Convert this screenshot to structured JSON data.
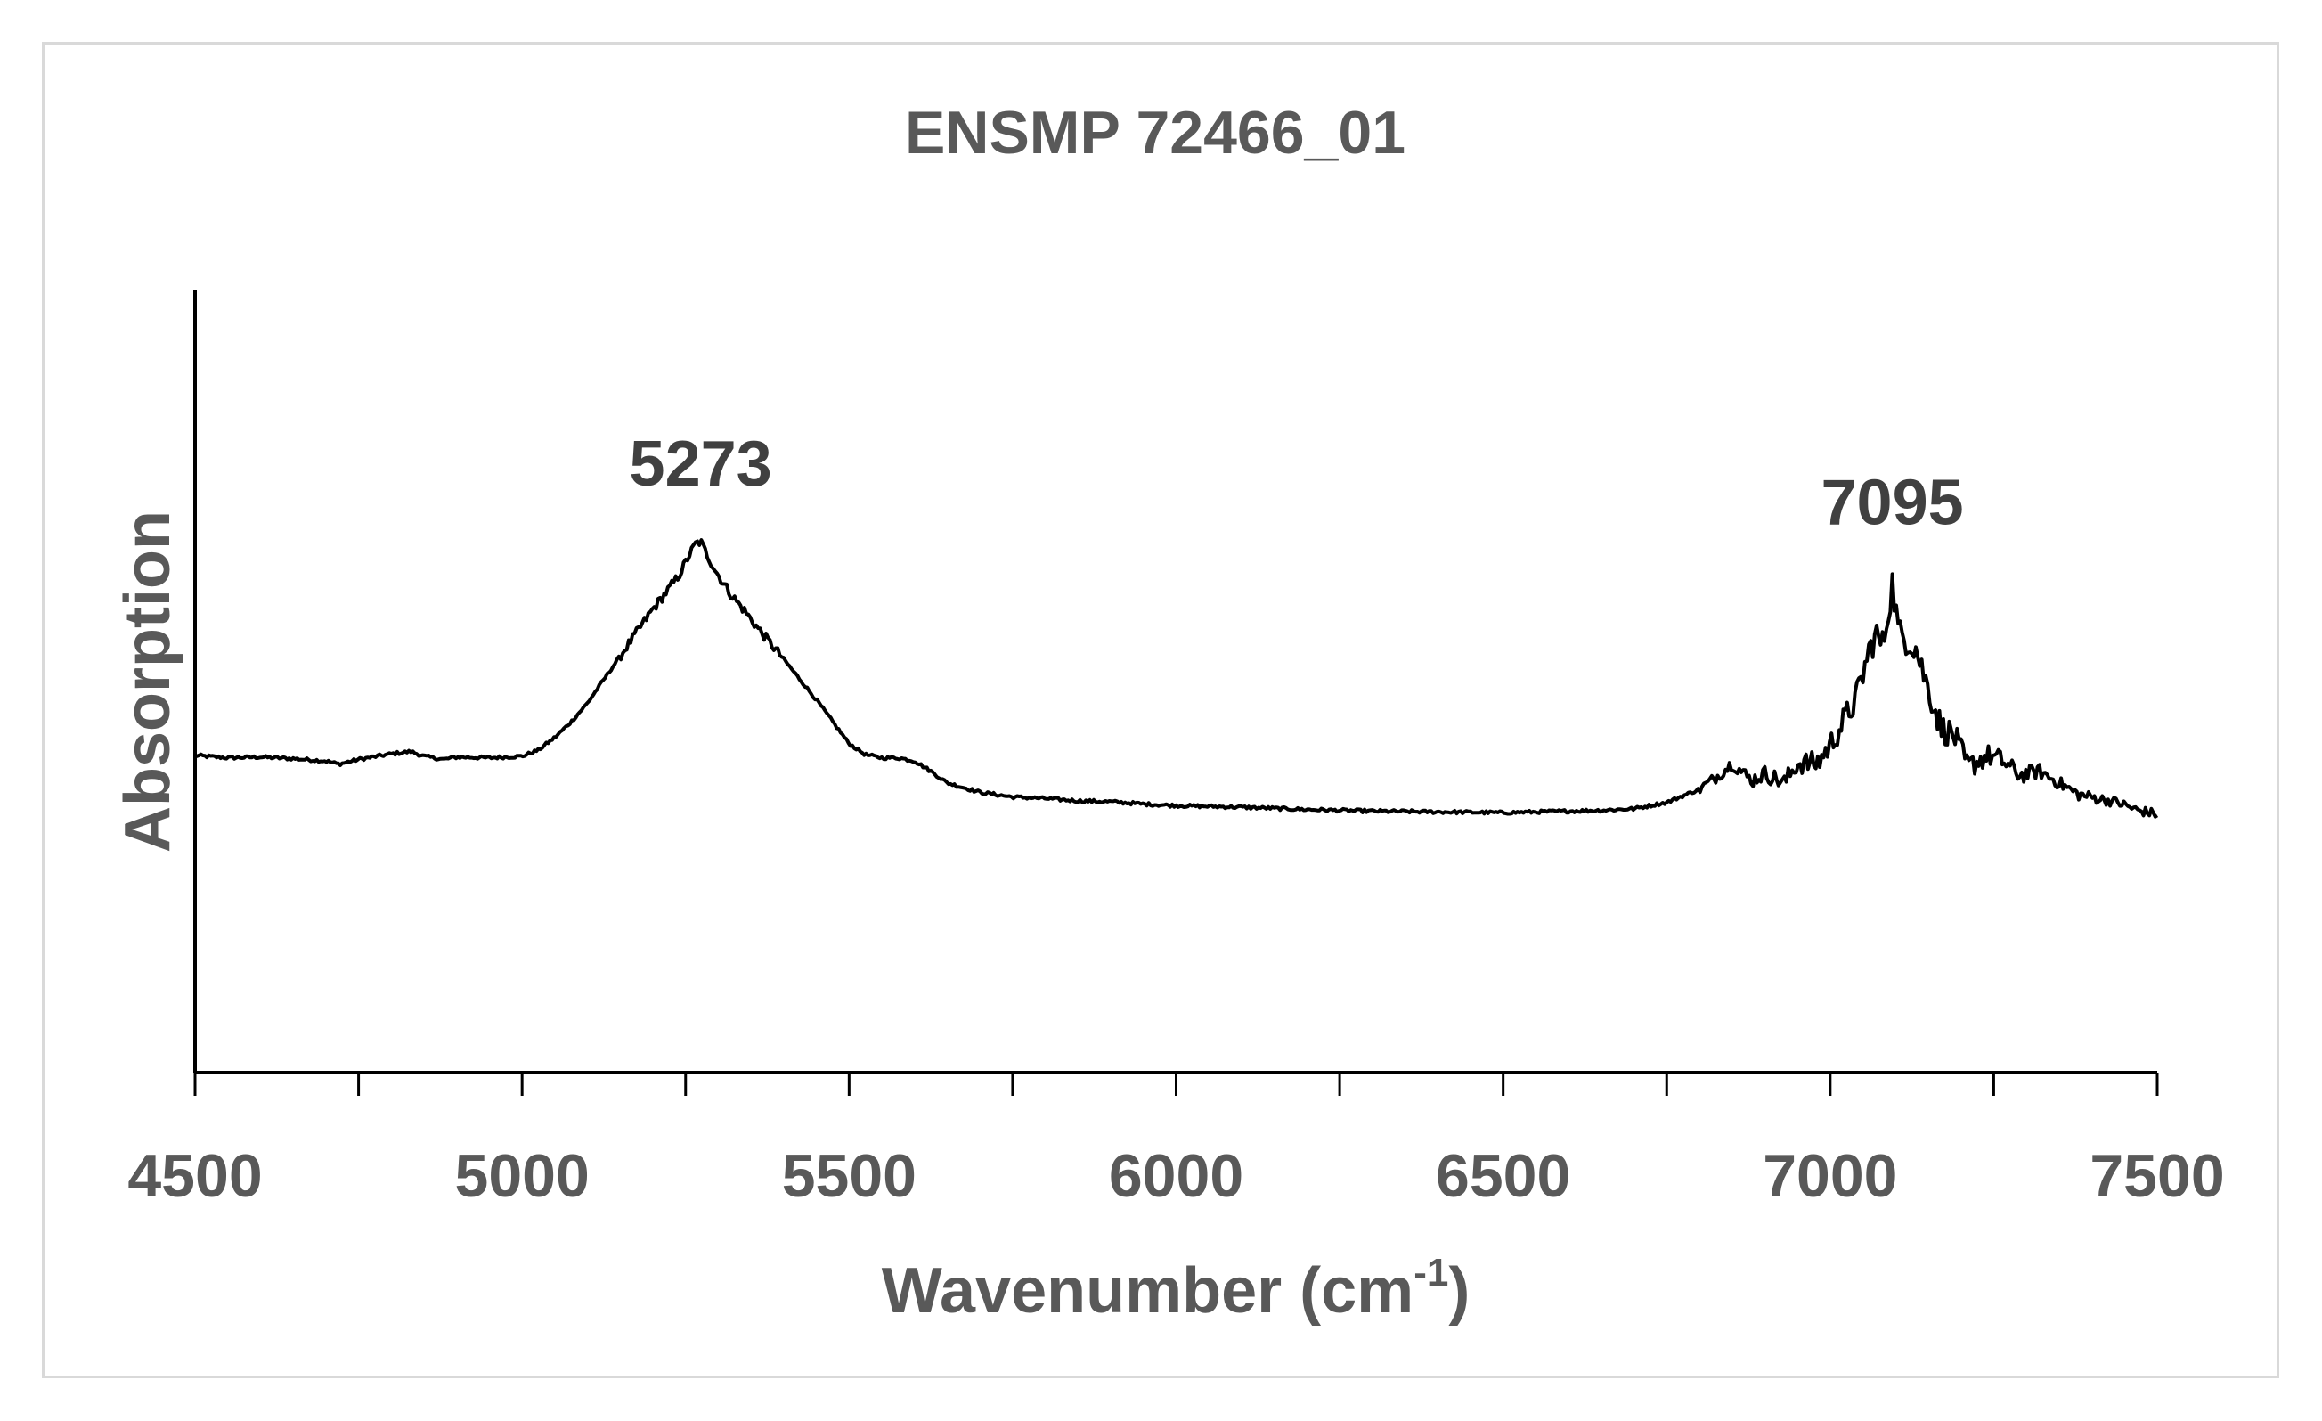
{
  "chart_data": {
    "type": "line",
    "title": "ENSMP 72466_01",
    "xlabel": "Wavenumber (cm",
    "xlabel_sup": "-1",
    "xlabel_close": ")",
    "ylabel": "Absorption",
    "xlim": [
      4500,
      7500
    ],
    "ylim": [
      0,
      1
    ],
    "x_ticks": [
      4500,
      5000,
      5500,
      6000,
      6500,
      7000,
      7500
    ],
    "x_tick_labels": [
      "4500",
      "5000",
      "5500",
      "6000",
      "6500",
      "7000",
      "7500"
    ],
    "x_minor_step": 250,
    "grid": false,
    "legend": "none",
    "line_color": "#000000",
    "annotations": [
      {
        "text": "5273",
        "x": 5273,
        "y": 0.75
      },
      {
        "text": "7095",
        "x": 7095,
        "y": 0.7
      }
    ],
    "series": [
      {
        "name": "ENSMP 72466_01",
        "x": [
          4500,
          4550,
          4600,
          4650,
          4700,
          4720,
          4750,
          4800,
          4830,
          4850,
          4880,
          4900,
          4950,
          5000,
          5025,
          5050,
          5075,
          5100,
          5125,
          5150,
          5175,
          5200,
          5220,
          5240,
          5255,
          5265,
          5273,
          5280,
          5290,
          5300,
          5320,
          5340,
          5360,
          5380,
          5400,
          5425,
          5450,
          5475,
          5500,
          5525,
          5550,
          5575,
          5600,
          5625,
          5650,
          5700,
          5750,
          5800,
          5850,
          5900,
          5950,
          6000,
          6100,
          6200,
          6300,
          6400,
          6500,
          6550,
          6600,
          6650,
          6700,
          6750,
          6800,
          6830,
          6850,
          6880,
          6900,
          6930,
          6950,
          6980,
          7000,
          7020,
          7040,
          7060,
          7070,
          7080,
          7088,
          7095,
          7105,
          7115,
          7130,
          7150,
          7170,
          7190,
          7210,
          7240,
          7260,
          7290,
          7320,
          7350,
          7380,
          7410,
          7440,
          7470,
          7500
        ],
        "y": [
          0.405,
          0.402,
          0.403,
          0.401,
          0.398,
          0.394,
          0.4,
          0.407,
          0.41,
          0.404,
          0.4,
          0.403,
          0.402,
          0.404,
          0.412,
          0.428,
          0.448,
          0.472,
          0.502,
          0.532,
          0.562,
          0.592,
          0.613,
          0.635,
          0.66,
          0.675,
          0.678,
          0.666,
          0.65,
          0.635,
          0.61,
          0.59,
          0.568,
          0.548,
          0.528,
          0.502,
          0.476,
          0.448,
          0.42,
          0.406,
          0.402,
          0.402,
          0.398,
          0.385,
          0.37,
          0.358,
          0.352,
          0.35,
          0.347,
          0.346,
          0.343,
          0.341,
          0.339,
          0.336,
          0.334,
          0.333,
          0.332,
          0.333,
          0.334,
          0.335,
          0.337,
          0.345,
          0.362,
          0.38,
          0.395,
          0.373,
          0.382,
          0.37,
          0.395,
          0.395,
          0.418,
          0.448,
          0.478,
          0.54,
          0.56,
          0.545,
          0.585,
          0.625,
          0.56,
          0.555,
          0.545,
          0.49,
          0.44,
          0.43,
          0.39,
          0.405,
          0.4,
          0.38,
          0.385,
          0.37,
          0.355,
          0.35,
          0.345,
          0.335,
          0.33
        ]
      }
    ]
  }
}
